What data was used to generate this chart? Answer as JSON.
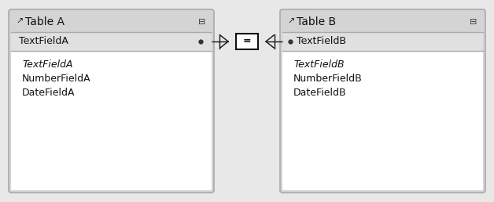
{
  "outer_bg": "#e8e8e8",
  "table_bg": "#ffffff",
  "table_header_bg": "#d4d4d4",
  "table_border_color": "#aaaaaa",
  "table_field_row_bg": "#e8e8e8",
  "table_a": {
    "title": "Table A",
    "header_field": "TextFieldA",
    "fields": [
      "TextFieldA",
      "NumberFieldA",
      "DateFieldA"
    ]
  },
  "table_b": {
    "title": "Table B",
    "header_field": "TextFieldB",
    "fields": [
      "TextFieldB",
      "NumberFieldB",
      "DateFieldB"
    ]
  },
  "title_fontsize": 10,
  "field_fontsize": 9,
  "header_field_fontsize": 9,
  "eq_symbol": "=",
  "eq_fontsize": 9
}
